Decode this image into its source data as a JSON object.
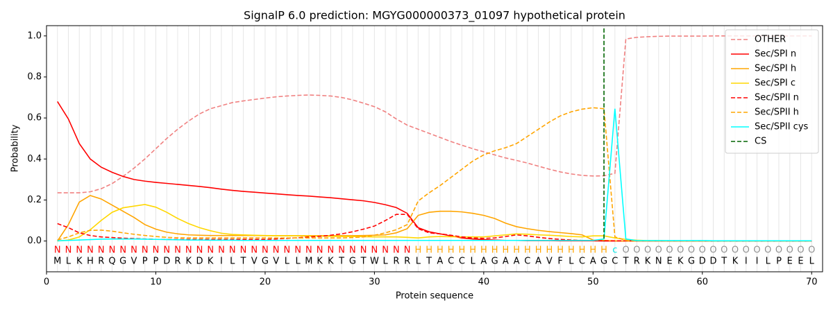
{
  "chart_data": {
    "type": "line",
    "title": "SignalP 6.0 prediction: MGYG000000373_01097 hypothetical protein",
    "xlabel": "Protein sequence",
    "ylabel": "Probability",
    "x": [
      1,
      2,
      3,
      4,
      5,
      6,
      7,
      8,
      9,
      10,
      11,
      12,
      13,
      14,
      15,
      16,
      17,
      18,
      19,
      20,
      21,
      22,
      23,
      24,
      25,
      26,
      27,
      28,
      29,
      30,
      31,
      32,
      33,
      34,
      35,
      36,
      37,
      38,
      39,
      40,
      41,
      42,
      43,
      44,
      45,
      46,
      47,
      48,
      49,
      50,
      51,
      52,
      53,
      54,
      55,
      56,
      57,
      58,
      59,
      60,
      61,
      62,
      63,
      64,
      65,
      66,
      67,
      68,
      69,
      70
    ],
    "xlim": [
      0,
      71
    ],
    "xticks": [
      0,
      10,
      20,
      30,
      40,
      50,
      60,
      70
    ],
    "ylim": [
      -0.15,
      1.05
    ],
    "yticks": [
      {
        "value": 0,
        "label": "0.0"
      },
      {
        "value": 0.2,
        "label": "0.2"
      },
      {
        "value": 0.4,
        "label": "0.4"
      },
      {
        "value": 0.6,
        "label": "0.6"
      },
      {
        "value": 0.8,
        "label": "0.8"
      },
      {
        "value": 1,
        "label": "1.0"
      }
    ],
    "grid": true,
    "legend": "upper right",
    "series": [
      {
        "name": "OTHER",
        "color": "#f08080",
        "dash": true,
        "values": [
          0.235,
          0.235,
          0.235,
          0.24,
          0.255,
          0.28,
          0.315,
          0.355,
          0.4,
          0.45,
          0.5,
          0.545,
          0.585,
          0.62,
          0.645,
          0.66,
          0.675,
          0.683,
          0.69,
          0.697,
          0.703,
          0.707,
          0.71,
          0.712,
          0.71,
          0.707,
          0.7,
          0.688,
          0.672,
          0.655,
          0.63,
          0.595,
          0.565,
          0.545,
          0.525,
          0.505,
          0.485,
          0.467,
          0.45,
          0.435,
          0.42,
          0.405,
          0.393,
          0.38,
          0.365,
          0.35,
          0.337,
          0.327,
          0.32,
          0.317,
          0.318,
          0.33,
          0.985,
          0.993,
          0.996,
          0.998,
          0.999,
          0.999,
          0.999,
          0.999,
          1,
          1,
          1,
          1,
          1,
          1,
          1,
          1,
          1,
          1
        ]
      },
      {
        "name": "Sec/SPI n",
        "color": "#ff0000",
        "dash": false,
        "values": [
          0.68,
          0.595,
          0.475,
          0.4,
          0.36,
          0.335,
          0.315,
          0.3,
          0.292,
          0.286,
          0.281,
          0.276,
          0.271,
          0.266,
          0.26,
          0.253,
          0.247,
          0.242,
          0.238,
          0.234,
          0.23,
          0.226,
          0.222,
          0.219,
          0.215,
          0.211,
          0.206,
          0.201,
          0.196,
          0.188,
          0.177,
          0.163,
          0.135,
          0.065,
          0.045,
          0.035,
          0.025,
          0.015,
          0.01,
          0.007,
          0.005,
          0.003,
          0.003,
          0.002,
          0.002,
          0.002,
          0.001,
          0.001,
          0.001,
          0.001,
          0,
          0,
          0,
          0,
          0,
          0,
          0,
          0,
          0,
          0,
          0,
          0,
          0,
          0,
          0,
          0,
          0,
          0,
          0,
          0
        ]
      },
      {
        "name": "Sec/SPI h",
        "color": "#ffa500",
        "dash": false,
        "values": [
          0,
          0.08,
          0.19,
          0.222,
          0.205,
          0.175,
          0.145,
          0.115,
          0.08,
          0.058,
          0.043,
          0.035,
          0.03,
          0.028,
          0.027,
          0.027,
          0.027,
          0.027,
          0.027,
          0.026,
          0.026,
          0.026,
          0.026,
          0.026,
          0.026,
          0.026,
          0.026,
          0.026,
          0.027,
          0.028,
          0.03,
          0.04,
          0.06,
          0.125,
          0.14,
          0.145,
          0.145,
          0.142,
          0.135,
          0.125,
          0.11,
          0.087,
          0.07,
          0.06,
          0.052,
          0.046,
          0.041,
          0.036,
          0.03,
          0.005,
          0.003,
          0.001,
          0,
          0,
          0,
          0,
          0,
          0,
          0,
          0,
          0,
          0,
          0,
          0,
          0,
          0,
          0,
          0,
          0,
          0
        ]
      },
      {
        "name": "Sec/SPI c",
        "color": "#ffd700",
        "dash": false,
        "values": [
          0,
          0.005,
          0.02,
          0.055,
          0.1,
          0.14,
          0.162,
          0.17,
          0.178,
          0.165,
          0.14,
          0.11,
          0.085,
          0.065,
          0.05,
          0.038,
          0.032,
          0.03,
          0.028,
          0.027,
          0.026,
          0.025,
          0.025,
          0.024,
          0.024,
          0.023,
          0.022,
          0.022,
          0.021,
          0.02,
          0.02,
          0.02,
          0.018,
          0.015,
          0.02,
          0.022,
          0.021,
          0.02,
          0.02,
          0.02,
          0.025,
          0.03,
          0.035,
          0.033,
          0.03,
          0.028,
          0.025,
          0.022,
          0.02,
          0.025,
          0.025,
          0.015,
          0.008,
          0.004,
          0.002,
          0.002,
          0.001,
          0.001,
          0.001,
          0.001,
          0,
          0,
          0,
          0,
          0,
          0,
          0,
          0,
          0,
          0
        ]
      },
      {
        "name": "Sec/SPII n",
        "color": "#ff0000",
        "dash": true,
        "values": [
          0.085,
          0.065,
          0.04,
          0.027,
          0.02,
          0.017,
          0.014,
          0.012,
          0.01,
          0.008,
          0.008,
          0.008,
          0.008,
          0.008,
          0.008,
          0.008,
          0.008,
          0.008,
          0.008,
          0.008,
          0.01,
          0.013,
          0.016,
          0.02,
          0.023,
          0.028,
          0.035,
          0.045,
          0.058,
          0.073,
          0.1,
          0.13,
          0.13,
          0.06,
          0.04,
          0.035,
          0.028,
          0.02,
          0.015,
          0.013,
          0.015,
          0.022,
          0.03,
          0.025,
          0.018,
          0.012,
          0.008,
          0.005,
          0.003,
          0.002,
          0.001,
          0.001,
          0.001,
          0.001,
          0.001,
          0.001,
          0.001,
          0.001,
          0.001,
          0.001,
          0,
          0,
          0,
          0,
          0,
          0,
          0,
          0,
          0,
          0
        ]
      },
      {
        "name": "Sec/SPII h",
        "color": "#ffa500",
        "dash": true,
        "values": [
          0.005,
          0.02,
          0.04,
          0.052,
          0.053,
          0.048,
          0.04,
          0.033,
          0.027,
          0.022,
          0.018,
          0.016,
          0.015,
          0.015,
          0.015,
          0.015,
          0.015,
          0.015,
          0.015,
          0.015,
          0.015,
          0.015,
          0.015,
          0.015,
          0.015,
          0.015,
          0.015,
          0.017,
          0.02,
          0.028,
          0.04,
          0.055,
          0.08,
          0.195,
          0.235,
          0.27,
          0.31,
          0.35,
          0.39,
          0.42,
          0.44,
          0.455,
          0.475,
          0.51,
          0.545,
          0.58,
          0.61,
          0.63,
          0.643,
          0.65,
          0.645,
          0.02,
          0.003,
          0.001,
          0.001,
          0.001,
          0.001,
          0.001,
          0.001,
          0.001,
          0,
          0,
          0,
          0,
          0,
          0,
          0,
          0,
          0,
          0
        ]
      },
      {
        "name": "Sec/SPII cys",
        "color": "#00ffff",
        "dash": false,
        "values": [
          0.001,
          0.003,
          0.005,
          0.007,
          0.009,
          0.01,
          0.01,
          0.01,
          0.009,
          0.008,
          0.007,
          0.006,
          0.005,
          0.005,
          0.004,
          0.004,
          0.004,
          0.003,
          0.003,
          0.003,
          0.003,
          0.003,
          0.003,
          0.003,
          0.003,
          0.003,
          0.003,
          0.003,
          0.003,
          0.003,
          0.003,
          0.003,
          0.003,
          0.003,
          0.003,
          0.003,
          0.003,
          0.003,
          0.003,
          0.003,
          0.003,
          0.003,
          0.003,
          0.003,
          0.003,
          0.003,
          0.003,
          0.003,
          0.003,
          0.003,
          0.01,
          0.645,
          0.01,
          0.002,
          0.002,
          0.002,
          0.002,
          0.002,
          0.002,
          0.002,
          0.001,
          0.001,
          0.001,
          0.001,
          0.001,
          0.001,
          0.001,
          0.001,
          0.001,
          0.001
        ]
      }
    ],
    "vlines": [
      {
        "name": "CS",
        "x": 51,
        "color": "#006400"
      }
    ],
    "residue_labels": [
      "N",
      "N",
      "N",
      "N",
      "N",
      "N",
      "N",
      "N",
      "N",
      "N",
      "N",
      "N",
      "N",
      "N",
      "N",
      "N",
      "N",
      "N",
      "N",
      "N",
      "N",
      "N",
      "N",
      "N",
      "N",
      "N",
      "N",
      "N",
      "N",
      "N",
      "N",
      "N",
      "N",
      "H",
      "H",
      "H",
      "H",
      "H",
      "H",
      "H",
      "H",
      "H",
      "H",
      "H",
      "H",
      "H",
      "H",
      "H",
      "H",
      "H",
      "H",
      "c",
      "O",
      "O",
      "O",
      "O",
      "O",
      "O",
      "O",
      "O",
      "O",
      "O",
      "O",
      "O",
      "O",
      "O",
      "O",
      "O",
      "O",
      "O"
    ],
    "label_colors": {
      "N": "#ff0000",
      "H": "#ffa500",
      "c": "#00e5e5",
      "O": "#909090"
    },
    "sequence": [
      "M",
      "L",
      "K",
      "H",
      "R",
      "Q",
      "G",
      "V",
      "P",
      "P",
      "D",
      "R",
      "K",
      "D",
      "K",
      "I",
      "L",
      "T",
      "V",
      "G",
      "V",
      "L",
      "L",
      "M",
      "K",
      "K",
      "T",
      "G",
      "T",
      "W",
      "L",
      "R",
      "R",
      "L",
      "T",
      "A",
      "C",
      "C",
      "L",
      "A",
      "G",
      "A",
      "A",
      "C",
      "A",
      "V",
      "F",
      "L",
      "C",
      "A",
      "G",
      "C",
      "T",
      "R",
      "K",
      "N",
      "E",
      "K",
      "G",
      "D",
      "D",
      "T",
      "K",
      "I",
      "I",
      "L",
      "P",
      "E",
      "E",
      "L"
    ]
  }
}
